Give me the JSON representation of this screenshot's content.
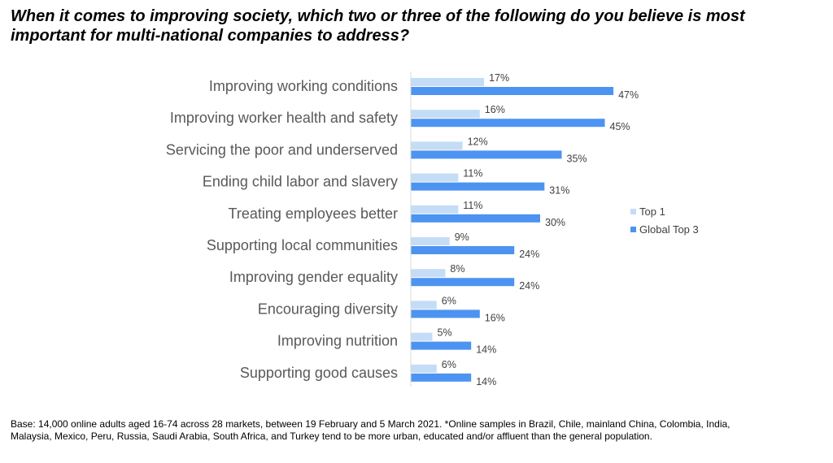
{
  "title": "When it comes to improving society, which two or three of the following do you believe is most important for multi-national companies to address?",
  "footnote": "Base: 14,000 online adults aged 16-74 across 28 markets, between 19 February and 5 March 2021. *Online samples in Brazil, Chile, mainland China, Colombia, India, Malaysia, Mexico, Peru, Russia, Saudi Arabia, South Africa, and Turkey tend to be more urban, educated and/or affluent than the general population.",
  "chart_data": {
    "type": "bar",
    "orientation": "horizontal",
    "categories": [
      "Improving working conditions",
      "Improving worker health and safety",
      "Servicing the poor and underserved",
      "Ending child labor and slavery",
      "Treating employees better",
      "Supporting local communities",
      "Improving gender equality",
      "Encouraging diversity",
      "Improving nutrition",
      "Supporting good causes"
    ],
    "series": [
      {
        "name": "Top 1",
        "color": "#c5dcf7",
        "values": [
          17,
          16,
          12,
          11,
          11,
          9,
          8,
          6,
          5,
          6
        ]
      },
      {
        "name": "Global Top 3",
        "color": "#4d93f2",
        "values": [
          47,
          45,
          35,
          31,
          30,
          24,
          24,
          16,
          14,
          14
        ]
      }
    ],
    "value_suffix": "%",
    "legend_position": "right",
    "grid": false
  }
}
